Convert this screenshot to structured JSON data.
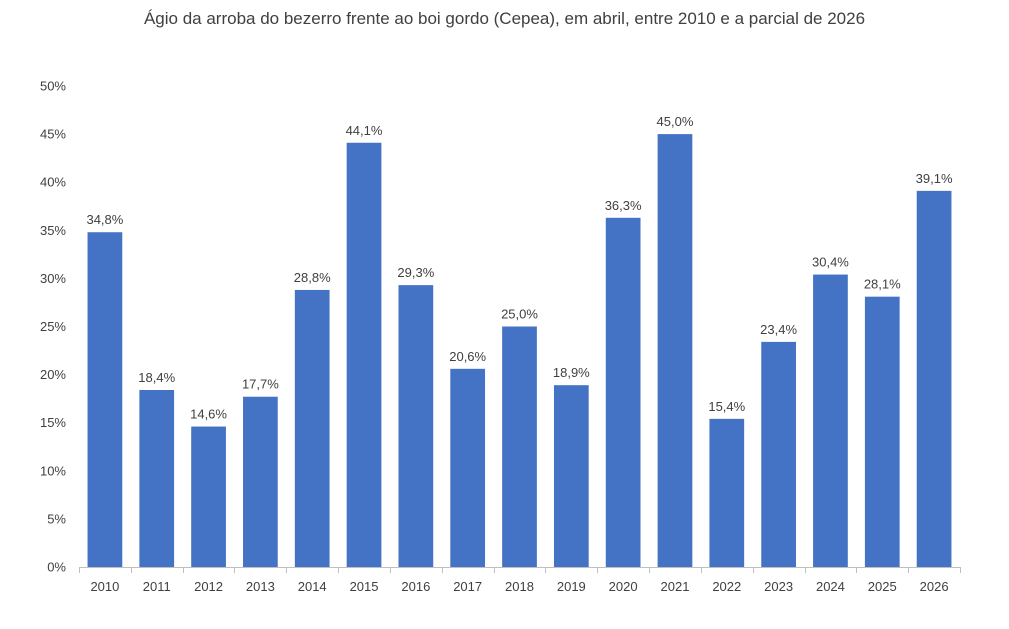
{
  "chart_data": {
    "type": "bar",
    "title": "Ágio da arroba do bezerro frente ao boi gordo (Cepea), em abril, entre 2010 e a parcial de 2026",
    "xlabel": "",
    "ylabel": "",
    "ylim": [
      0,
      50
    ],
    "yticks": [
      0,
      5,
      10,
      15,
      20,
      25,
      30,
      35,
      40,
      45,
      50
    ],
    "ytick_labels": [
      "0%",
      "5%",
      "10%",
      "15%",
      "20%",
      "25%",
      "30%",
      "35%",
      "40%",
      "45%",
      "50%"
    ],
    "grid": false,
    "legend": "none",
    "categories": [
      "2010",
      "2011",
      "2012",
      "2013",
      "2014",
      "2015",
      "2016",
      "2017",
      "2018",
      "2019",
      "2020",
      "2021",
      "2022",
      "2023",
      "2024",
      "2025",
      "2026"
    ],
    "values": [
      34.8,
      18.4,
      14.6,
      17.7,
      28.8,
      44.1,
      29.3,
      20.6,
      25.0,
      18.9,
      36.3,
      45.0,
      15.4,
      23.4,
      30.4,
      28.1,
      39.1
    ],
    "data_labels": [
      "34,8%",
      "18,4%",
      "14,6%",
      "17,7%",
      "28,8%",
      "44,1%",
      "29,3%",
      "20,6%",
      "25,0%",
      "18,9%",
      "36,3%",
      "45,0%",
      "15,4%",
      "23,4%",
      "30,4%",
      "28,1%",
      "39,1%"
    ],
    "bar_color": "#4472C4"
  }
}
